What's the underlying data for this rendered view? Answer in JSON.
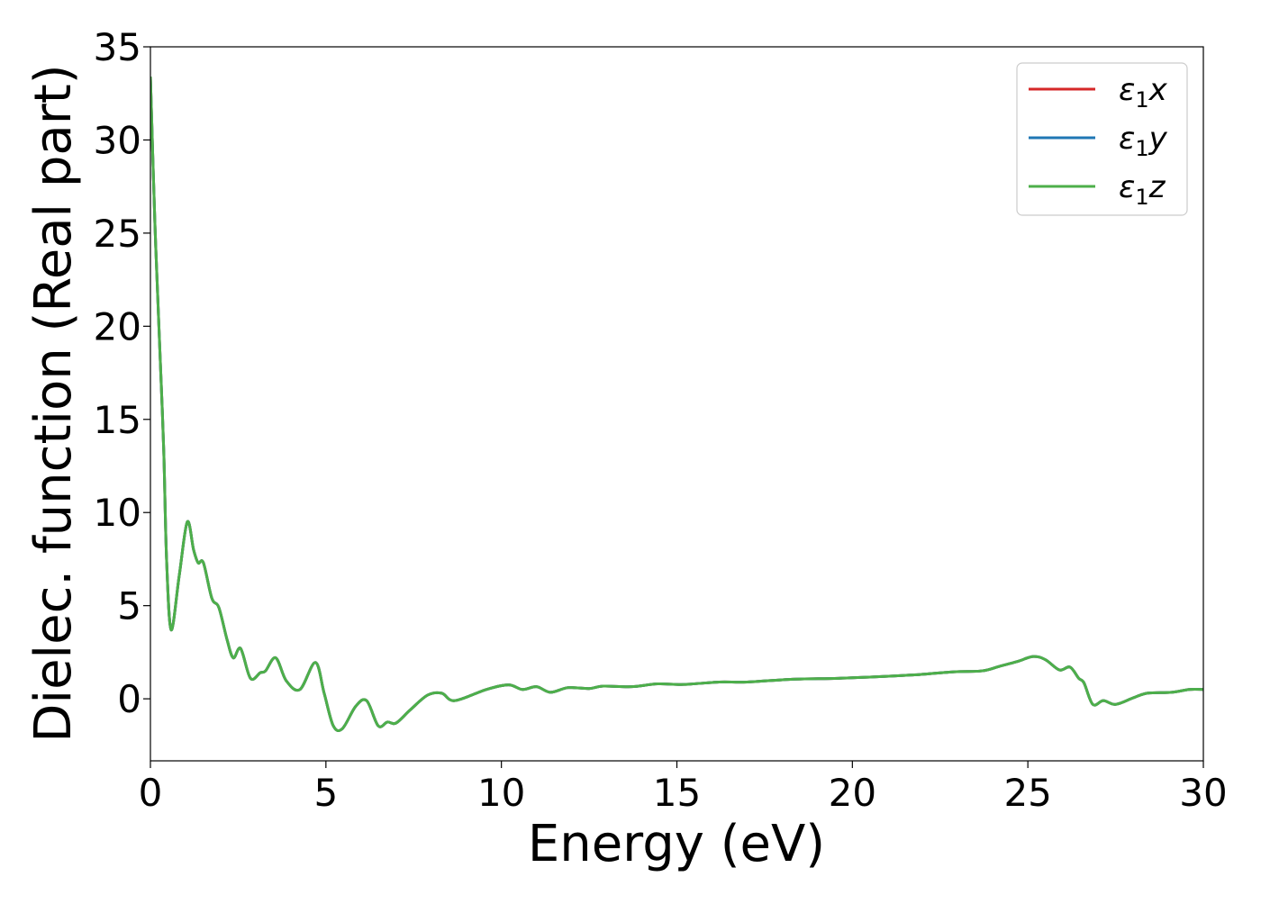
{
  "chart_data": {
    "type": "line",
    "title": "",
    "xlabel": "Energy (eV)",
    "ylabel": "Dielec. function (Real part)",
    "xlim": [
      0,
      30
    ],
    "ylim": [
      -3.33,
      35
    ],
    "xticks": [
      0,
      5,
      10,
      15,
      20,
      25,
      30
    ],
    "yticks": [
      0,
      5,
      10,
      15,
      20,
      25,
      30,
      35
    ],
    "grid": false,
    "legend_placement": "top-right",
    "x": [
      0,
      0.13,
      0.28,
      0.38,
      0.46,
      0.59,
      0.82,
      1.05,
      1.23,
      1.36,
      1.51,
      1.75,
      1.95,
      2.18,
      2.36,
      2.57,
      2.85,
      3.13,
      3.28,
      3.57,
      3.87,
      4.26,
      4.7,
      4.95,
      5.21,
      5.47,
      5.85,
      6.16,
      6.49,
      6.75,
      7.0,
      7.4,
      7.9,
      8.3,
      8.67,
      9.57,
      10.2,
      10.6,
      11.0,
      11.4,
      11.9,
      12.5,
      12.9,
      13.7,
      14.45,
      15.2,
      16.2,
      17.0,
      18.3,
      19.6,
      20.9,
      21.9,
      22.9,
      23.7,
      24.2,
      24.7,
      25.15,
      25.5,
      25.9,
      26.2,
      26.45,
      26.6,
      26.85,
      27.15,
      27.5,
      28.0,
      28.4,
      29.1,
      29.6,
      30.0
    ],
    "series": [
      {
        "name": "ε1x",
        "color": "#d62728",
        "values": [
          33.4,
          25.4,
          18.2,
          13.3,
          7.5,
          3.7,
          6.6,
          9.5,
          8.0,
          7.3,
          7.3,
          5.4,
          4.9,
          3.2,
          2.2,
          2.7,
          1.1,
          1.4,
          1.5,
          2.2,
          0.97,
          0.5,
          1.95,
          0.3,
          -1.45,
          -1.6,
          -0.4,
          -0.1,
          -1.45,
          -1.25,
          -1.3,
          -0.6,
          0.2,
          0.3,
          -0.1,
          0.5,
          0.75,
          0.5,
          0.65,
          0.35,
          0.6,
          0.55,
          0.68,
          0.65,
          0.8,
          0.77,
          0.9,
          0.9,
          1.05,
          1.1,
          1.2,
          1.3,
          1.45,
          1.5,
          1.75,
          2.0,
          2.27,
          2.1,
          1.55,
          1.7,
          1.1,
          0.85,
          -0.3,
          -0.1,
          -0.3,
          0.05,
          0.3,
          0.35,
          0.5,
          0.5
        ]
      },
      {
        "name": "ε1y",
        "color": "#1f77b4",
        "values": [
          33.4,
          25.4,
          18.2,
          13.3,
          7.5,
          3.7,
          6.6,
          9.5,
          8.0,
          7.3,
          7.3,
          5.4,
          4.9,
          3.2,
          2.2,
          2.7,
          1.1,
          1.4,
          1.5,
          2.2,
          0.97,
          0.5,
          1.95,
          0.3,
          -1.45,
          -1.6,
          -0.4,
          -0.1,
          -1.45,
          -1.25,
          -1.3,
          -0.6,
          0.2,
          0.3,
          -0.1,
          0.5,
          0.75,
          0.5,
          0.65,
          0.35,
          0.6,
          0.55,
          0.68,
          0.65,
          0.8,
          0.77,
          0.9,
          0.9,
          1.05,
          1.1,
          1.2,
          1.3,
          1.45,
          1.5,
          1.75,
          2.0,
          2.27,
          2.1,
          1.55,
          1.7,
          1.1,
          0.85,
          -0.3,
          -0.1,
          -0.3,
          0.05,
          0.3,
          0.35,
          0.5,
          0.5
        ]
      },
      {
        "name": "ε1z",
        "color": "#4daf4a",
        "values": [
          33.4,
          25.4,
          18.2,
          13.3,
          7.5,
          3.7,
          6.6,
          9.5,
          8.0,
          7.3,
          7.3,
          5.4,
          4.9,
          3.2,
          2.2,
          2.7,
          1.1,
          1.4,
          1.5,
          2.2,
          0.97,
          0.5,
          1.95,
          0.3,
          -1.45,
          -1.6,
          -0.4,
          -0.1,
          -1.45,
          -1.25,
          -1.3,
          -0.6,
          0.2,
          0.3,
          -0.1,
          0.5,
          0.75,
          0.5,
          0.65,
          0.35,
          0.6,
          0.55,
          0.68,
          0.65,
          0.8,
          0.77,
          0.9,
          0.9,
          1.05,
          1.1,
          1.2,
          1.3,
          1.45,
          1.5,
          1.75,
          2.0,
          2.27,
          2.1,
          1.55,
          1.7,
          1.1,
          0.85,
          -0.3,
          -0.1,
          -0.3,
          0.05,
          0.3,
          0.35,
          0.5,
          0.5
        ]
      }
    ],
    "legend": [
      {
        "symbol": "ε",
        "sub": "1",
        "var": "x"
      },
      {
        "symbol": "ε",
        "sub": "1",
        "var": "y"
      },
      {
        "symbol": "ε",
        "sub": "1",
        "var": "z"
      }
    ]
  }
}
